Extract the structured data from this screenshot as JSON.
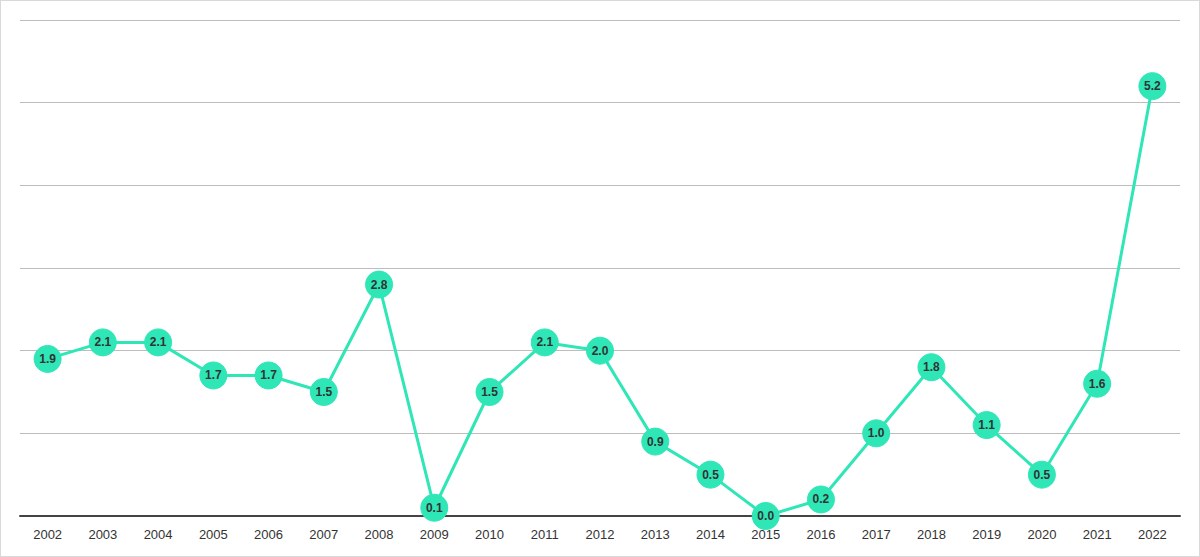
{
  "chart_data": {
    "type": "line",
    "categories": [
      "2002",
      "2003",
      "2004",
      "2005",
      "2006",
      "2007",
      "2008",
      "2009",
      "2010",
      "2011",
      "2012",
      "2013",
      "2014",
      "2015",
      "2016",
      "2017",
      "2018",
      "2019",
      "2020",
      "2021",
      "2022"
    ],
    "values": [
      1.9,
      2.1,
      2.1,
      1.7,
      1.7,
      1.5,
      2.8,
      0.1,
      1.5,
      2.1,
      2.0,
      0.9,
      0.5,
      0.0,
      0.2,
      1.0,
      1.8,
      1.1,
      0.5,
      1.6,
      5.2
    ],
    "value_labels": [
      "1.9",
      "2.1",
      "2.1",
      "1.7",
      "1.7",
      "1.5",
      "2.8",
      "0.1",
      "1.5",
      "2.1",
      "2.0",
      "0.9",
      "0.5",
      "0.0",
      "0.2",
      "1.0",
      "1.8",
      "1.1",
      "0.5",
      "1.6",
      "5.2"
    ],
    "color": "#2ee6b6",
    "ylim": [
      0,
      6
    ],
    "yticks": [
      0,
      1,
      2,
      3,
      4,
      5,
      6
    ],
    "grid": true,
    "data_labels": true,
    "tick_labels": "x",
    "marker": "circle"
  }
}
